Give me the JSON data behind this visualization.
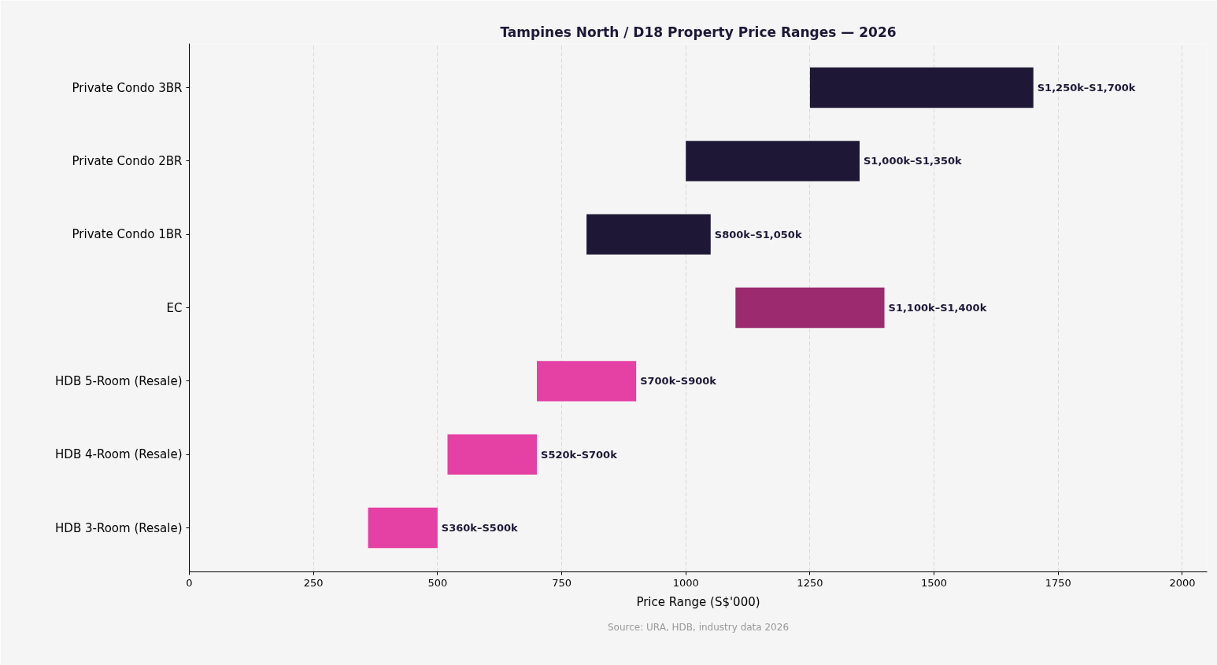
{
  "chart_data": {
    "type": "bar",
    "orientation": "horizontal",
    "title": "Tampines North / D18 Property Price Ranges — 2026",
    "xlabel": "Price Range (S$'000)",
    "categories": [
      "Private Condo 3BR",
      "Private Condo 2BR",
      "Private Condo 1BR",
      "EC",
      "HDB 5-Room (Resale)",
      "HDB 4-Room (Resale)",
      "HDB 3-Room (Resale)"
    ],
    "base": [
      1250,
      1000,
      800,
      1100,
      700,
      520,
      360
    ],
    "values": [
      450,
      350,
      250,
      300,
      200,
      180,
      140
    ],
    "colors": [
      "#1e1836",
      "#1e1836",
      "#1e1836",
      "#9b2a6f",
      "#e540a4",
      "#e540a4",
      "#e540a4"
    ],
    "value_labels": [
      "S1,250k–S1,700k",
      "S1,000k–S1,350k",
      "S800k–S1,050k",
      "S1,100k–S1,400k",
      "S700k–S900k",
      "S520k–S700k",
      "S360k–S500k"
    ],
    "xlim": [
      0,
      2050
    ],
    "xticks": [
      0,
      250,
      500,
      750,
      1000,
      1250,
      1500,
      1750,
      2000
    ],
    "grid": "x",
    "annotations": [
      "Source: URA, HDB, industry data 2026"
    ]
  }
}
